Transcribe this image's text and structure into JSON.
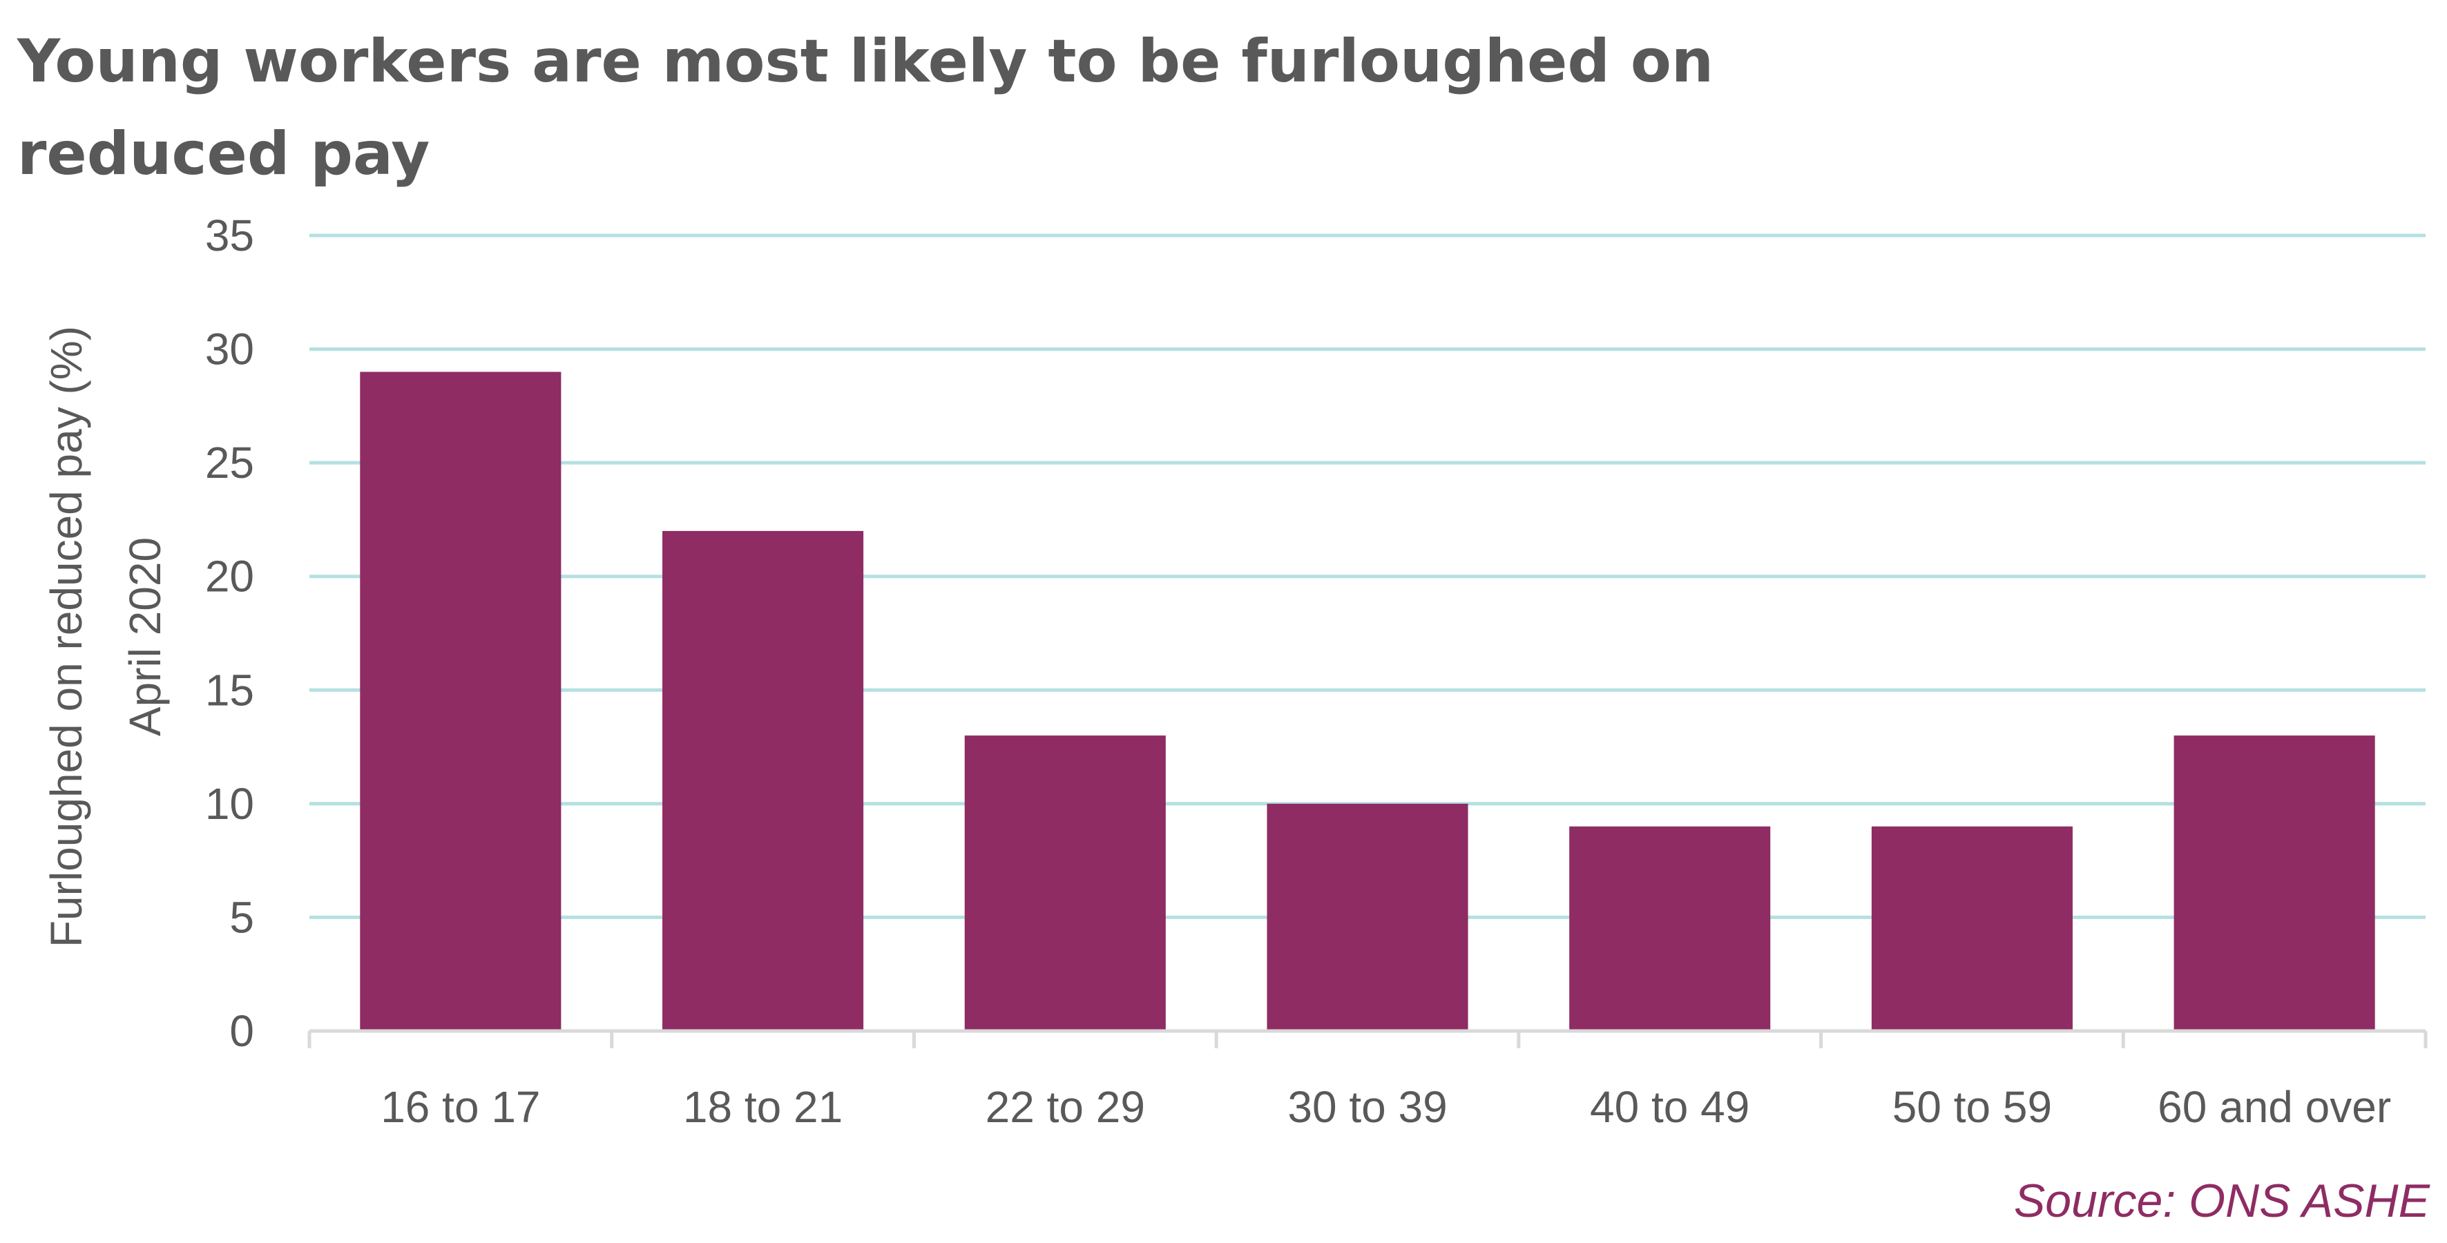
{
  "chart_data": {
    "type": "bar",
    "title_lines": [
      "Young workers are most likely to be furloughed on",
      "reduced pay"
    ],
    "ylabel_lines": [
      "Furloughed on reduced pay (%)",
      "April 2020"
    ],
    "xlabel": "",
    "categories": [
      "16 to 17",
      "18 to 21",
      "22 to 29",
      "30 to 39",
      "40 to 49",
      "50 to 59",
      "60 and over"
    ],
    "values": [
      29,
      22,
      13,
      10,
      9,
      9,
      13
    ],
    "ylim": [
      0,
      35
    ],
    "yticks": [
      "0",
      "5",
      "10",
      "15",
      "20",
      "25",
      "30",
      "35"
    ],
    "grid": true,
    "legend": "none",
    "source": "Source: ONS ASHE",
    "colors": {
      "bar": "#8e2c63",
      "grid": "#b5e0e2",
      "axis": "#d9d9d9",
      "text": "#595959",
      "source": "#8e2c63"
    }
  }
}
